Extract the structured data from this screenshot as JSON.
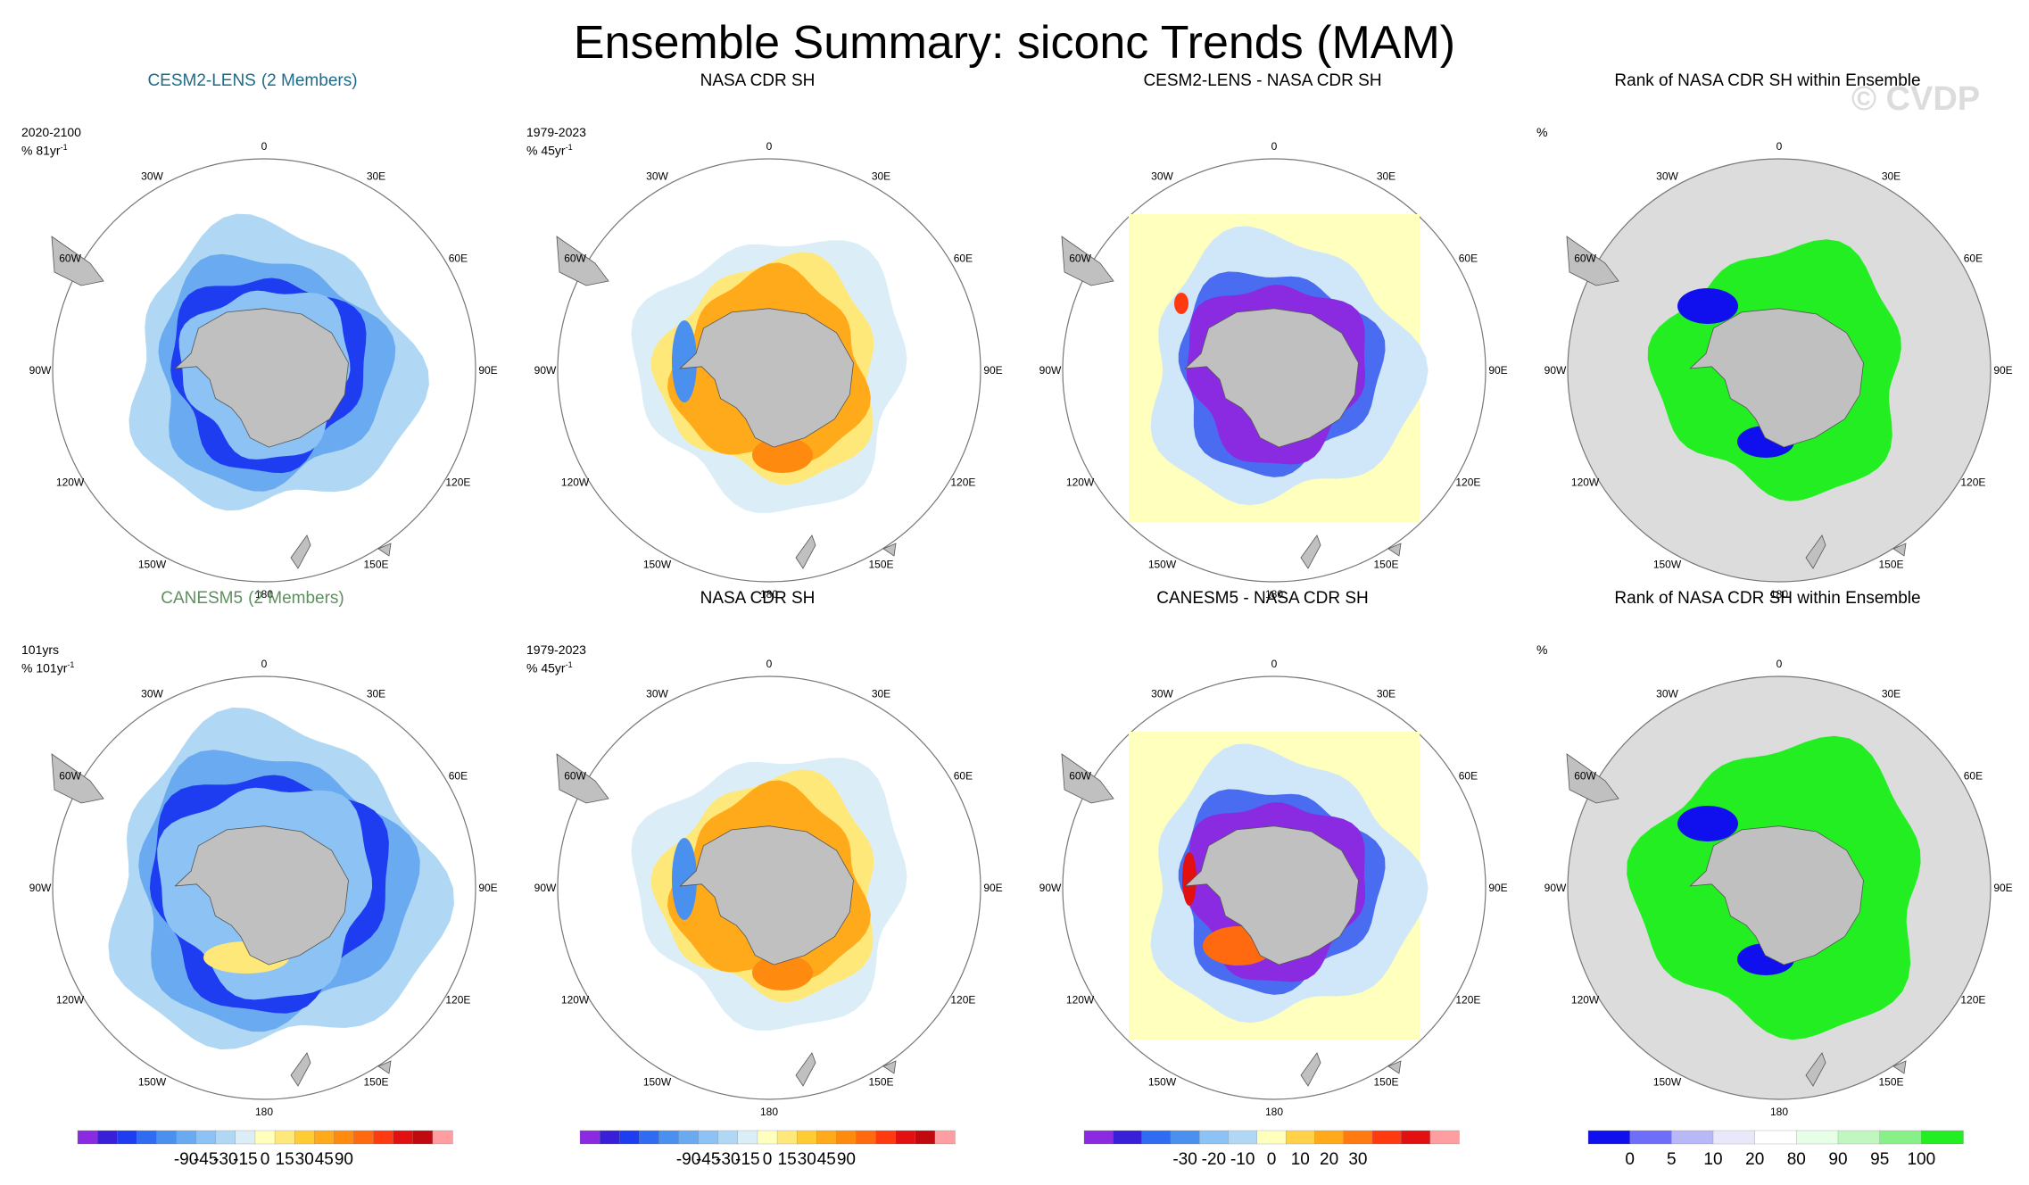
{
  "title": "Ensemble Summary: siconc Trends (MAM)",
  "watermark": "© CVDP",
  "colors": {
    "land": "#c0c0c0",
    "ocean": "#ffffff",
    "rank_bg": "#dcdcdc",
    "cesm_title": "#1e6b8a",
    "canesm_title": "#5f8f5f"
  },
  "lon_labels": [
    "0",
    "30E",
    "60E",
    "90E",
    "120E",
    "150E",
    "180",
    "150W",
    "120W",
    "90W",
    "60W",
    "30W"
  ],
  "panels": [
    {
      "title": "CESM2-LENS",
      "subtitle": "(2 Members)",
      "title_color": "#1e6b8a",
      "info": [
        "2020-2100",
        "% 81yr"
      ],
      "info_sup": "-1",
      "kind": "model_cesm"
    },
    {
      "title": "NASA CDR SH",
      "subtitle": "",
      "title_color": "#000000",
      "info": [
        "1979-2023",
        "% 45yr"
      ],
      "info_sup": "-1",
      "kind": "obs"
    },
    {
      "title": "CESM2-LENS - NASA CDR SH",
      "subtitle": "",
      "title_color": "#000000",
      "info": [],
      "info_sup": "",
      "kind": "diff_cesm"
    },
    {
      "title": "Rank of NASA CDR SH within Ensemble",
      "subtitle": "",
      "title_color": "#000000",
      "info": [
        "%"
      ],
      "info_sup": "",
      "kind": "rank_cesm"
    },
    {
      "title": "CANESM5",
      "subtitle": "(2 Members)",
      "title_color": "#5f8f5f",
      "info": [
        "101yrs",
        "% 101yr"
      ],
      "info_sup": "-1",
      "kind": "model_canesm"
    },
    {
      "title": "NASA CDR SH",
      "subtitle": "",
      "title_color": "#000000",
      "info": [
        "1979-2023",
        "% 45yr"
      ],
      "info_sup": "-1",
      "kind": "obs"
    },
    {
      "title": "CANESM5 - NASA CDR SH",
      "subtitle": "",
      "title_color": "#000000",
      "info": [],
      "info_sup": "",
      "kind": "diff_canesm"
    },
    {
      "title": "Rank of NASA CDR SH within Ensemble",
      "subtitle": "",
      "title_color": "#000000",
      "info": [
        "%"
      ],
      "info_sup": "",
      "kind": "rank_canesm"
    }
  ],
  "chart_data": {
    "type": "heatmap",
    "projection": "south-polar-stereographic",
    "variable": "siconc",
    "season": "MAM",
    "colorbars": [
      {
        "name": "trend",
        "ticks": [
          "-90",
          "-45",
          "-30",
          "-15",
          "0",
          "15",
          "30",
          "45",
          "90"
        ],
        "colors": [
          "#8a2be2",
          "#3a1fd8",
          "#1e3cf0",
          "#2f6cf2",
          "#4a90ee",
          "#6aaaf0",
          "#8cc3f4",
          "#b0d8f4",
          "#dbeef8",
          "#ffffbe",
          "#ffe87a",
          "#ffcc33",
          "#ffaa1a",
          "#ff8a10",
          "#ff6a10",
          "#ff3a10",
          "#e21010",
          "#c00a10",
          "#ff9ea0"
        ]
      },
      {
        "name": "trend",
        "ticks": [
          "-90",
          "-45",
          "-30",
          "-15",
          "0",
          "15",
          "30",
          "45",
          "90"
        ],
        "colors": [
          "#8a2be2",
          "#3a1fd8",
          "#1e3cf0",
          "#2f6cf2",
          "#4a90ee",
          "#6aaaf0",
          "#8cc3f4",
          "#b0d8f4",
          "#dbeef8",
          "#ffffbe",
          "#ffe87a",
          "#ffcc33",
          "#ffaa1a",
          "#ff8a10",
          "#ff6a10",
          "#ff3a10",
          "#e21010",
          "#c00a10",
          "#ff9ea0"
        ]
      },
      {
        "name": "difference",
        "ticks": [
          "-30",
          "-20",
          "-10",
          "0",
          "10",
          "20",
          "30"
        ],
        "colors": [
          "#8a2be2",
          "#3a1fd8",
          "#2f6cf2",
          "#4a90ee",
          "#8cc3f4",
          "#b0d8f4",
          "#ffffbe",
          "#ffd24a",
          "#ffaa1a",
          "#ff7a10",
          "#ff3a10",
          "#e21010",
          "#ff9ea0"
        ]
      },
      {
        "name": "rank",
        "ticks": [
          "0",
          "5",
          "10",
          "20",
          "80",
          "90",
          "95",
          "100"
        ],
        "colors": [
          "#1010ee",
          "#6e6ef8",
          "#b8b8f8",
          "#e8e8fa",
          "#ffffff",
          "#e6ffe6",
          "#bff7bf",
          "#88f088",
          "#22ee22"
        ]
      }
    ]
  }
}
